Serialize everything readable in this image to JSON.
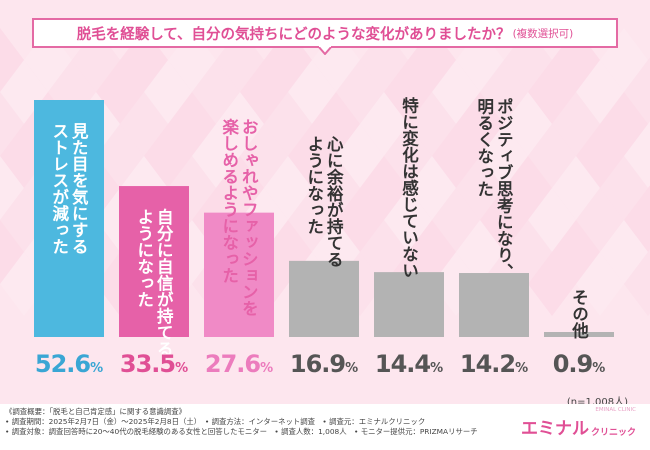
{
  "title": {
    "main": "脱毛を経験して、自分の気持ちにどのような変化がありましたか？",
    "note": "(複数選択可)"
  },
  "chart_data": {
    "type": "bar",
    "unit": "%",
    "sample_size": "(n=1,008人)",
    "categories": [
      "見た目を気にするストレスが減った",
      "自分に自信が持てるようになった",
      "おしゃれやファッションを楽しめるようになった",
      "心に余裕が持てるようになった",
      "特に変化は感じていない",
      "ポジティブ思考になり、明るくなった",
      "その他"
    ],
    "label_lines": [
      [
        "見た目を気にする",
        "ストレスが減った"
      ],
      [
        "自分に自信が持てる",
        "ようになった"
      ],
      [
        "おしゃれやファッションを",
        "楽しめるようになった"
      ],
      [
        "心に余裕が持てる",
        "ようになった"
      ],
      [
        "特に変化は感じていない"
      ],
      [
        "ポジティブ思考になり、",
        "明るくなった"
      ],
      [
        "その他"
      ]
    ],
    "values": [
      52.6,
      33.5,
      27.6,
      16.9,
      14.4,
      14.2,
      0.9
    ],
    "value_labels": [
      "52.6",
      "33.5",
      "27.6",
      "16.9",
      "14.4",
      "14.2",
      "0.9"
    ],
    "colors": [
      "#4db8df",
      "#e661a8",
      "#f08ac6",
      "#b3b3b3",
      "#b3b3b3",
      "#b3b3b3",
      "#b3b3b3"
    ],
    "value_colors": [
      "#3aa6d4",
      "#e04f95",
      "#ec7cbd",
      "#555555",
      "#555555",
      "#555555",
      "#555555"
    ],
    "label_colors": [
      "#ffffff",
      "#ffffff",
      "#e661a8",
      "#333333",
      "#333333",
      "#333333",
      "#333333"
    ],
    "ylim": [
      0,
      52.6
    ],
    "grid": false
  },
  "footer": {
    "notes": [
      "《調査概要：「脱毛と自己肯定感」に関する意識調査》",
      "• 調査期間：2025年2月7日（金）〜2025年2月8日（土）　• 調査方法：インターネット調査　• 調査元：エミナルクリニック",
      "• 調査対象：調査回答時に20〜40代の脱毛経験のある女性と回答したモニター　• 調査人数：1,008人　• モニター提供元：PRIZMAリサーチ"
    ],
    "brand": {
      "name": "エミナル",
      "sub": "クリニック",
      "sup": "EMINAL CLINIC"
    }
  },
  "colors": {
    "accent": "#e04f95",
    "title_border": "#e46aa4",
    "background": "#fde6ee"
  }
}
